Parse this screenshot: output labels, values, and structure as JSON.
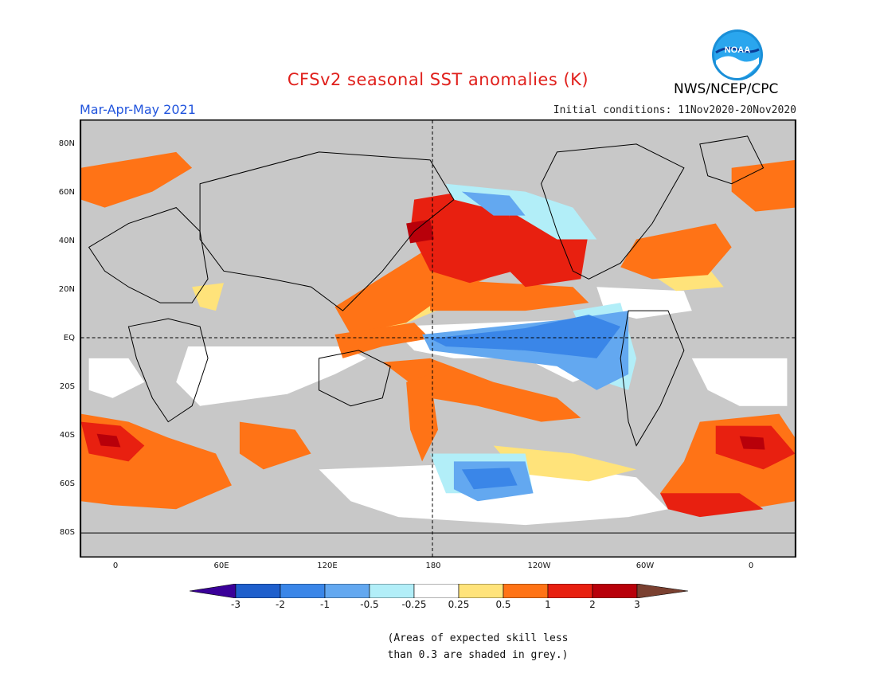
{
  "header": {
    "title": "CFSv2 seasonal SST anomalies (K)",
    "season": "Mar-Apr-May 2021",
    "initial_conditions": "Initial conditions: 11Nov2020-20Nov2020",
    "organization": "NWS/NCEP/CPC",
    "logo_text": "NOAA"
  },
  "map": {
    "latitude_labels": [
      "80N",
      "60N",
      "40N",
      "20N",
      "EQ",
      "20S",
      "40S",
      "60S",
      "80S"
    ],
    "longitude_labels": [
      "0",
      "60E",
      "120E",
      "180",
      "120W",
      "60W",
      "0"
    ]
  },
  "legend": {
    "tick_labels": [
      "-3",
      "-2",
      "-1",
      "-0.5",
      "-0.25",
      "0.25",
      "0.5",
      "1",
      "2",
      "3"
    ],
    "colors": [
      "#3a0099",
      "#1f5fcc",
      "#3a86e8",
      "#63a8f0",
      "#b2eef8",
      "#ffffff",
      "#ffe37a",
      "#ff7316",
      "#e82010",
      "#b8000a",
      "#7a4030"
    ]
  },
  "footnote": {
    "line1": "(Areas of expected skill less",
    "line2": "than 0.3 are shaded in grey.)"
  }
}
